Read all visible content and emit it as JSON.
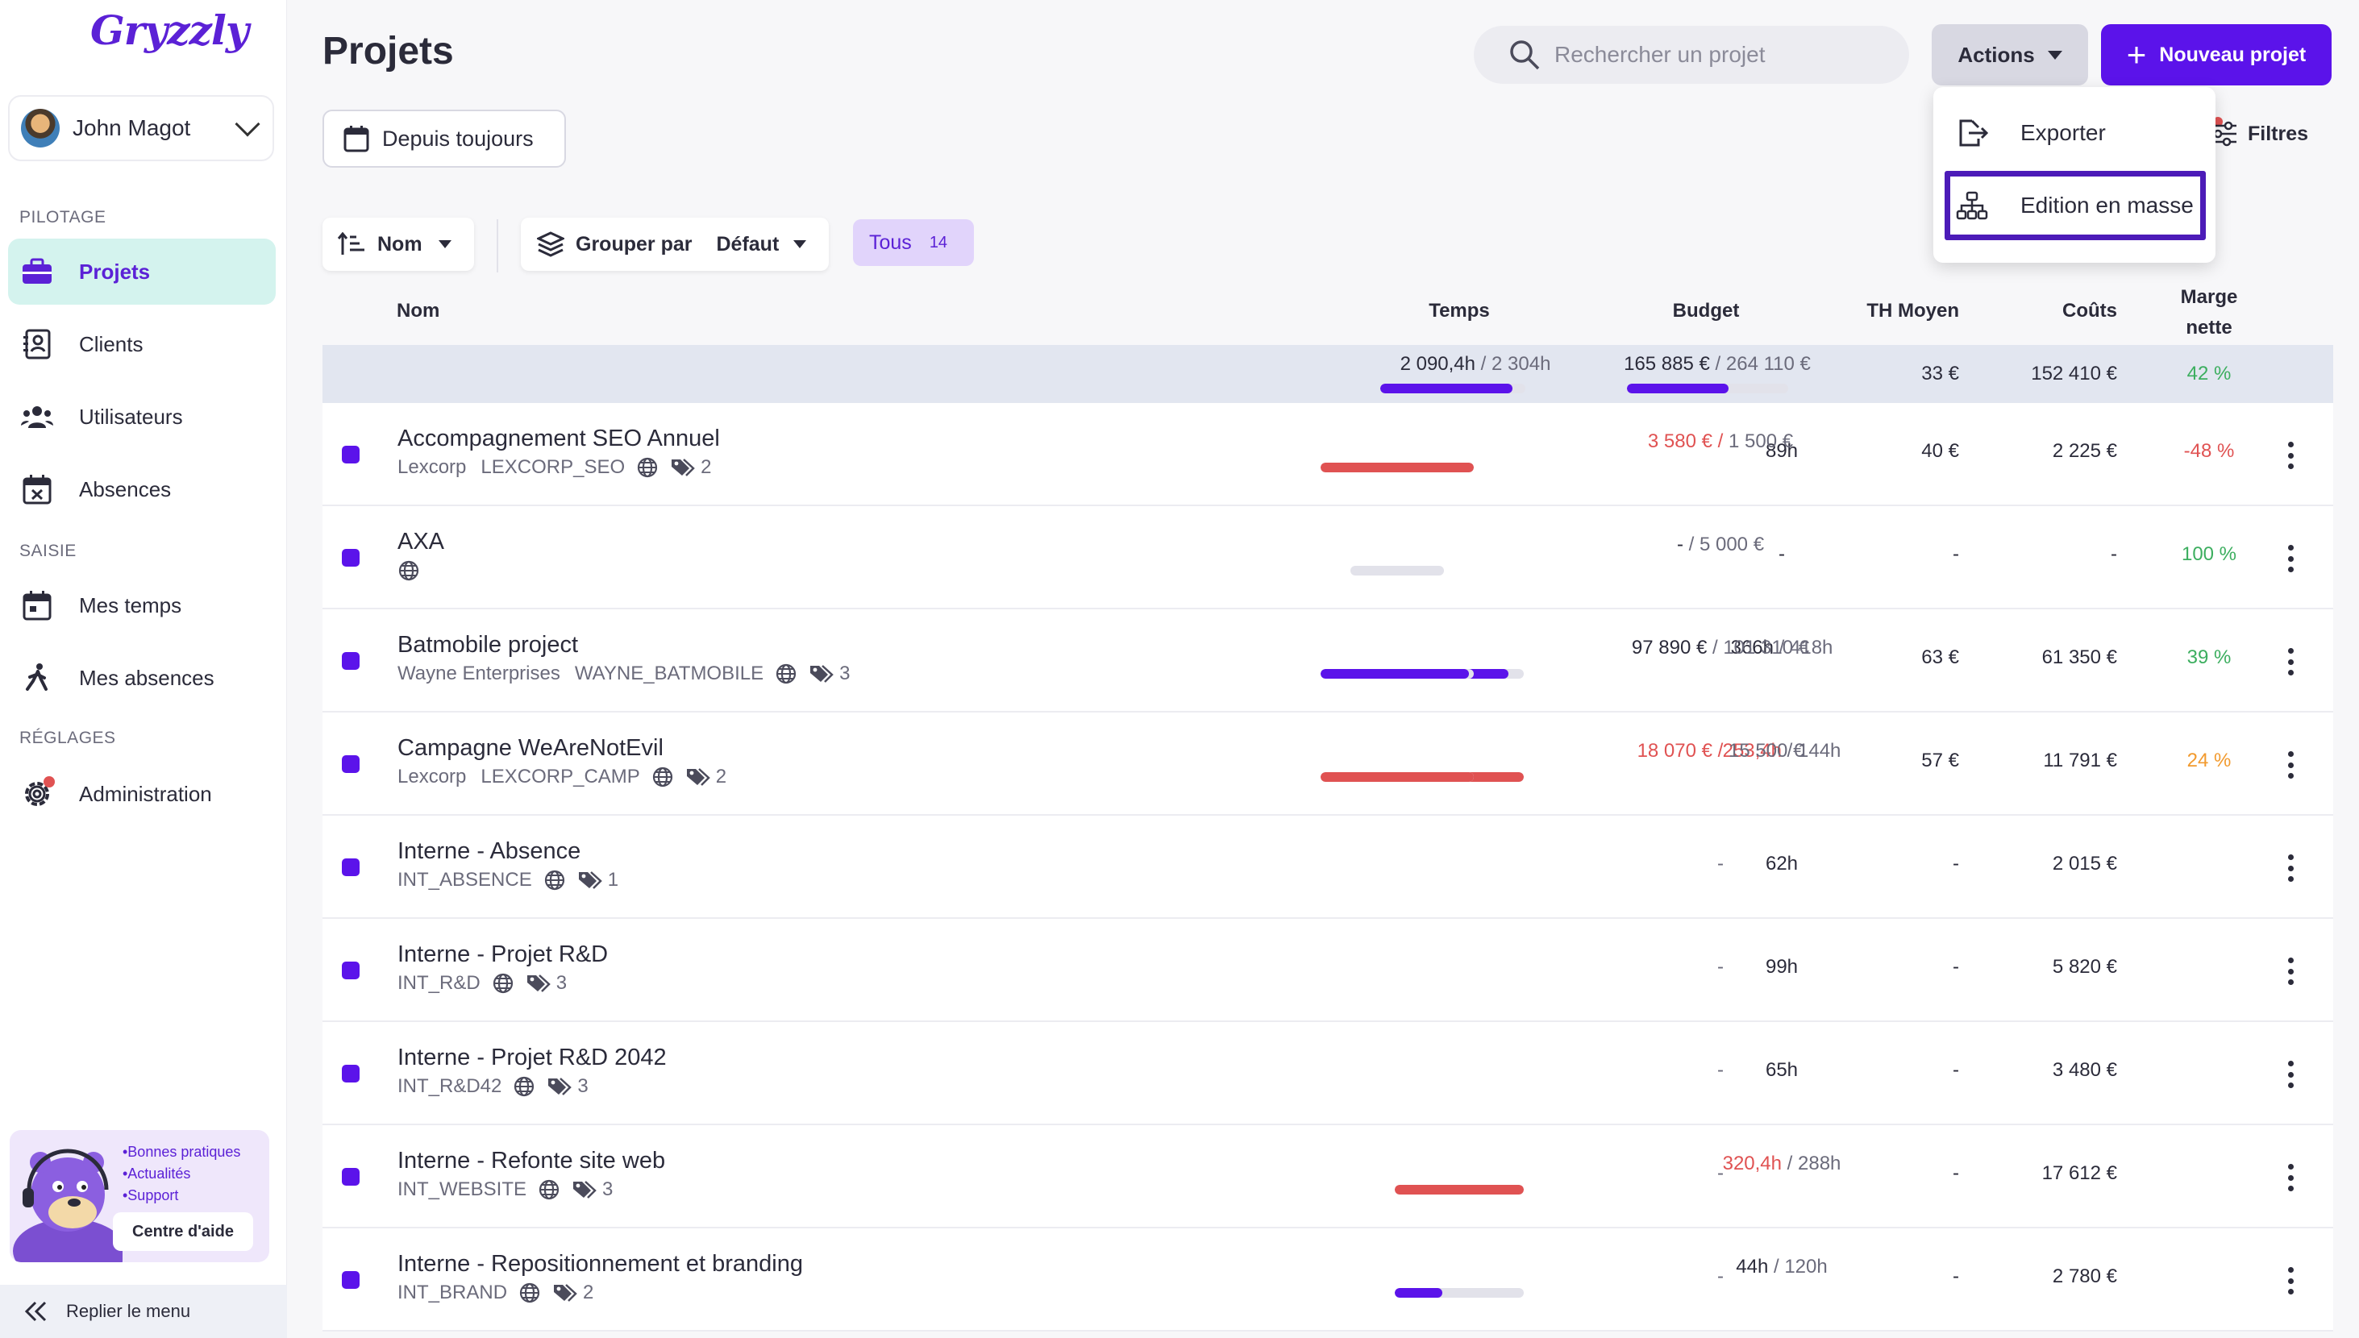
{
  "app": {
    "logo": "Gryzzly"
  },
  "user": {
    "name": "John Magot"
  },
  "sidebar": {
    "sections": [
      "PILOTAGE",
      "SAISIE",
      "RÉGLAGES"
    ],
    "items": [
      {
        "label": "Projets",
        "icon": "briefcase-icon",
        "active": true
      },
      {
        "label": "Clients",
        "icon": "contact-book-icon"
      },
      {
        "label": "Utilisateurs",
        "icon": "users-icon"
      },
      {
        "label": "Absences",
        "icon": "calendar-x-icon"
      },
      {
        "label": "Mes temps",
        "icon": "calendar-icon"
      },
      {
        "label": "Mes absences",
        "icon": "walking-person-icon"
      },
      {
        "label": "Administration",
        "icon": "gear-icon"
      }
    ],
    "help": {
      "list": [
        "•Bonnes pratiques",
        "•Actualités",
        "•Support"
      ],
      "button": "Centre d'aide"
    },
    "collapse_label": "Replier le menu"
  },
  "header": {
    "title": "Projets",
    "search_placeholder": "Rechercher un projet",
    "actions_label": "Actions",
    "new_project_label": "Nouveau projet"
  },
  "toolbar": {
    "date_filter": "Depuis toujours",
    "filters_label": "Filtres",
    "sort_label": "Nom",
    "group_label": "Grouper par",
    "group_value": "Défaut",
    "all_label": "Tous",
    "all_count": "14"
  },
  "actions_menu": {
    "items": [
      {
        "label": "Exporter",
        "icon": "export-icon"
      },
      {
        "label": "Edition en masse",
        "icon": "hierarchy-icon",
        "highlighted": true
      }
    ]
  },
  "table": {
    "columns": {
      "name": "Nom",
      "time": "Temps",
      "budget": "Budget",
      "rate": "TH Moyen",
      "costs": "Coûts",
      "margin_1": "Marge",
      "margin_2": "nette"
    },
    "summary": {
      "time_done": "2 090,4h",
      "time_total": "2 304h",
      "time_progress": 0.91,
      "budget_done": "165 885 €",
      "budget_total": "264 110 €",
      "budget_progress": 0.63,
      "rate": "33 €",
      "costs": "152 410 €",
      "margin": "42 %"
    },
    "rows": [
      {
        "name": "Accompagnement SEO Annuel",
        "client": "Lexcorp",
        "code": "LEXCORP_SEO",
        "tags": "2",
        "time": "89h",
        "time_total": "",
        "time_progress": null,
        "time_over": false,
        "budget": "3 580 €",
        "budget_total": "1 500 €",
        "budget_progress": 1.0,
        "budget_over": true,
        "rate": "40 €",
        "costs": "2 225 €",
        "margin": "-48 %",
        "margin_color": "#e05252"
      },
      {
        "name": "AXA",
        "client": "",
        "code": "",
        "tags": "",
        "time": "-",
        "time_total": "",
        "time_progress": null,
        "time_over": false,
        "budget": "-",
        "budget_total": "5 000 €",
        "budget_progress": 0.0,
        "budget_over": false,
        "rate": "-",
        "costs": "-",
        "margin": "100 %",
        "margin_color": "#3cae5f"
      },
      {
        "name": "Batmobile project",
        "client": "Wayne Enterprises",
        "code": "WAYNE_BATMOBILE",
        "tags": "3",
        "time": "366h",
        "time_total": "418h",
        "time_progress": 0.88,
        "time_over": false,
        "budget": "97 890 €",
        "budget_total": "101 310 €",
        "budget_progress": 0.97,
        "budget_over": false,
        "rate": "63 €",
        "costs": "61 350 €",
        "margin": "39 %",
        "margin_color": "#3cae5f"
      },
      {
        "name": "Campagne WeAreNotEvil",
        "client": "Lexcorp",
        "code": "LEXCORP_CAMP",
        "tags": "2",
        "time": "253,4h",
        "time_total": "144h",
        "time_progress": 1.0,
        "time_over": true,
        "budget": "18 070 €",
        "budget_total": "15 500 €",
        "budget_progress": 1.0,
        "budget_over": true,
        "rate": "57 €",
        "costs": "11 791 €",
        "margin": "24 %",
        "margin_color": "#f29a2e"
      },
      {
        "name": "Interne - Absence",
        "client": "",
        "code": "INT_ABSENCE",
        "tags": "1",
        "time": "62h",
        "time_total": "",
        "time_progress": null,
        "time_over": false,
        "budget": "-",
        "budget_total": "",
        "budget_progress": null,
        "budget_over": false,
        "rate": "-",
        "costs": "2 015 €",
        "margin": "",
        "margin_color": "#3cae5f"
      },
      {
        "name": "Interne - Projet R&D",
        "client": "",
        "code": "INT_R&D",
        "tags": "3",
        "time": "99h",
        "time_total": "",
        "time_progress": null,
        "time_over": false,
        "budget": "-",
        "budget_total": "",
        "budget_progress": null,
        "budget_over": false,
        "rate": "-",
        "costs": "5 820 €",
        "margin": "",
        "margin_color": "#3cae5f"
      },
      {
        "name": "Interne - Projet R&D 2042",
        "client": "",
        "code": "INT_R&D42",
        "tags": "3",
        "time": "65h",
        "time_total": "",
        "time_progress": null,
        "time_over": false,
        "budget": "-",
        "budget_total": "",
        "budget_progress": null,
        "budget_over": false,
        "rate": "-",
        "costs": "3 480 €",
        "margin": "",
        "margin_color": "#3cae5f"
      },
      {
        "name": "Interne - Refonte site web",
        "client": "",
        "code": "INT_WEBSITE",
        "tags": "3",
        "time": "320,4h",
        "time_total": "288h",
        "time_progress": 1.0,
        "time_over": true,
        "budget": "-",
        "budget_total": "",
        "budget_progress": null,
        "budget_over": false,
        "rate": "-",
        "costs": "17 612 €",
        "margin": "",
        "margin_color": "#3cae5f"
      },
      {
        "name": "Interne - Repositionnement et branding",
        "client": "",
        "code": "INT_BRAND",
        "tags": "2",
        "time": "44h",
        "time_total": "120h",
        "time_progress": 0.37,
        "time_over": false,
        "budget": "-",
        "budget_total": "",
        "budget_progress": null,
        "budget_over": false,
        "rate": "-",
        "costs": "2 780 €",
        "margin": "",
        "margin_color": "#3cae5f"
      }
    ]
  },
  "colors": {
    "accent": "#5b13ea",
    "over_budget": "#e05252",
    "active_nav_bg": "#d4f3ee"
  }
}
